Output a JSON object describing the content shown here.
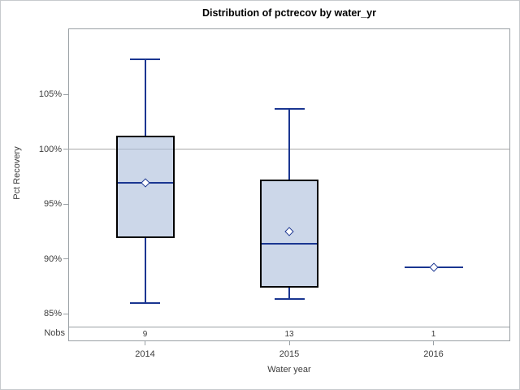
{
  "chart_data": {
    "type": "box",
    "title": "Distribution of pctrecov by water_yr",
    "xlabel": "Water year",
    "ylabel": "Pct Recovery",
    "categories": [
      "2014",
      "2015",
      "2016"
    ],
    "nobs_label": "Nobs",
    "nobs": [
      "9",
      "13",
      "1"
    ],
    "yticks": [
      {
        "value": 85,
        "label": "85%"
      },
      {
        "value": 90,
        "label": "90%"
      },
      {
        "value": 95,
        "label": "95%"
      },
      {
        "value": 100,
        "label": "100%"
      },
      {
        "value": 105,
        "label": "105%"
      }
    ],
    "ylim": [
      84,
      111
    ],
    "reference_line": 100,
    "grid": "horizontal reference line at 100% only",
    "legend_position": "none",
    "mean_marker_shape": "open-diamond",
    "series": [
      {
        "category": "2014",
        "n": 9,
        "min": 86.0,
        "q1": 91.9,
        "median": 96.9,
        "q3": 101.2,
        "max": 108.2,
        "mean": 96.9
      },
      {
        "category": "2015",
        "n": 13,
        "min": 86.3,
        "q1": 87.4,
        "median": 91.4,
        "q3": 97.2,
        "max": 103.7,
        "mean": 92.5
      },
      {
        "category": "2016",
        "n": 1,
        "min": 89.2,
        "q1": 89.2,
        "median": 89.2,
        "q3": 89.2,
        "max": 89.2,
        "mean": 89.2
      }
    ],
    "colors": {
      "box_fill": "rgba(172,191,219,0.62)",
      "box_border": "#000000",
      "whisker": "#1a3691",
      "median": "#1a3691",
      "mean_marker": "#1a3691",
      "reference_line": "#a9a9a9",
      "axis": "#9aa0a5",
      "text": "#3c3c3c",
      "title_text": "#000000"
    }
  }
}
